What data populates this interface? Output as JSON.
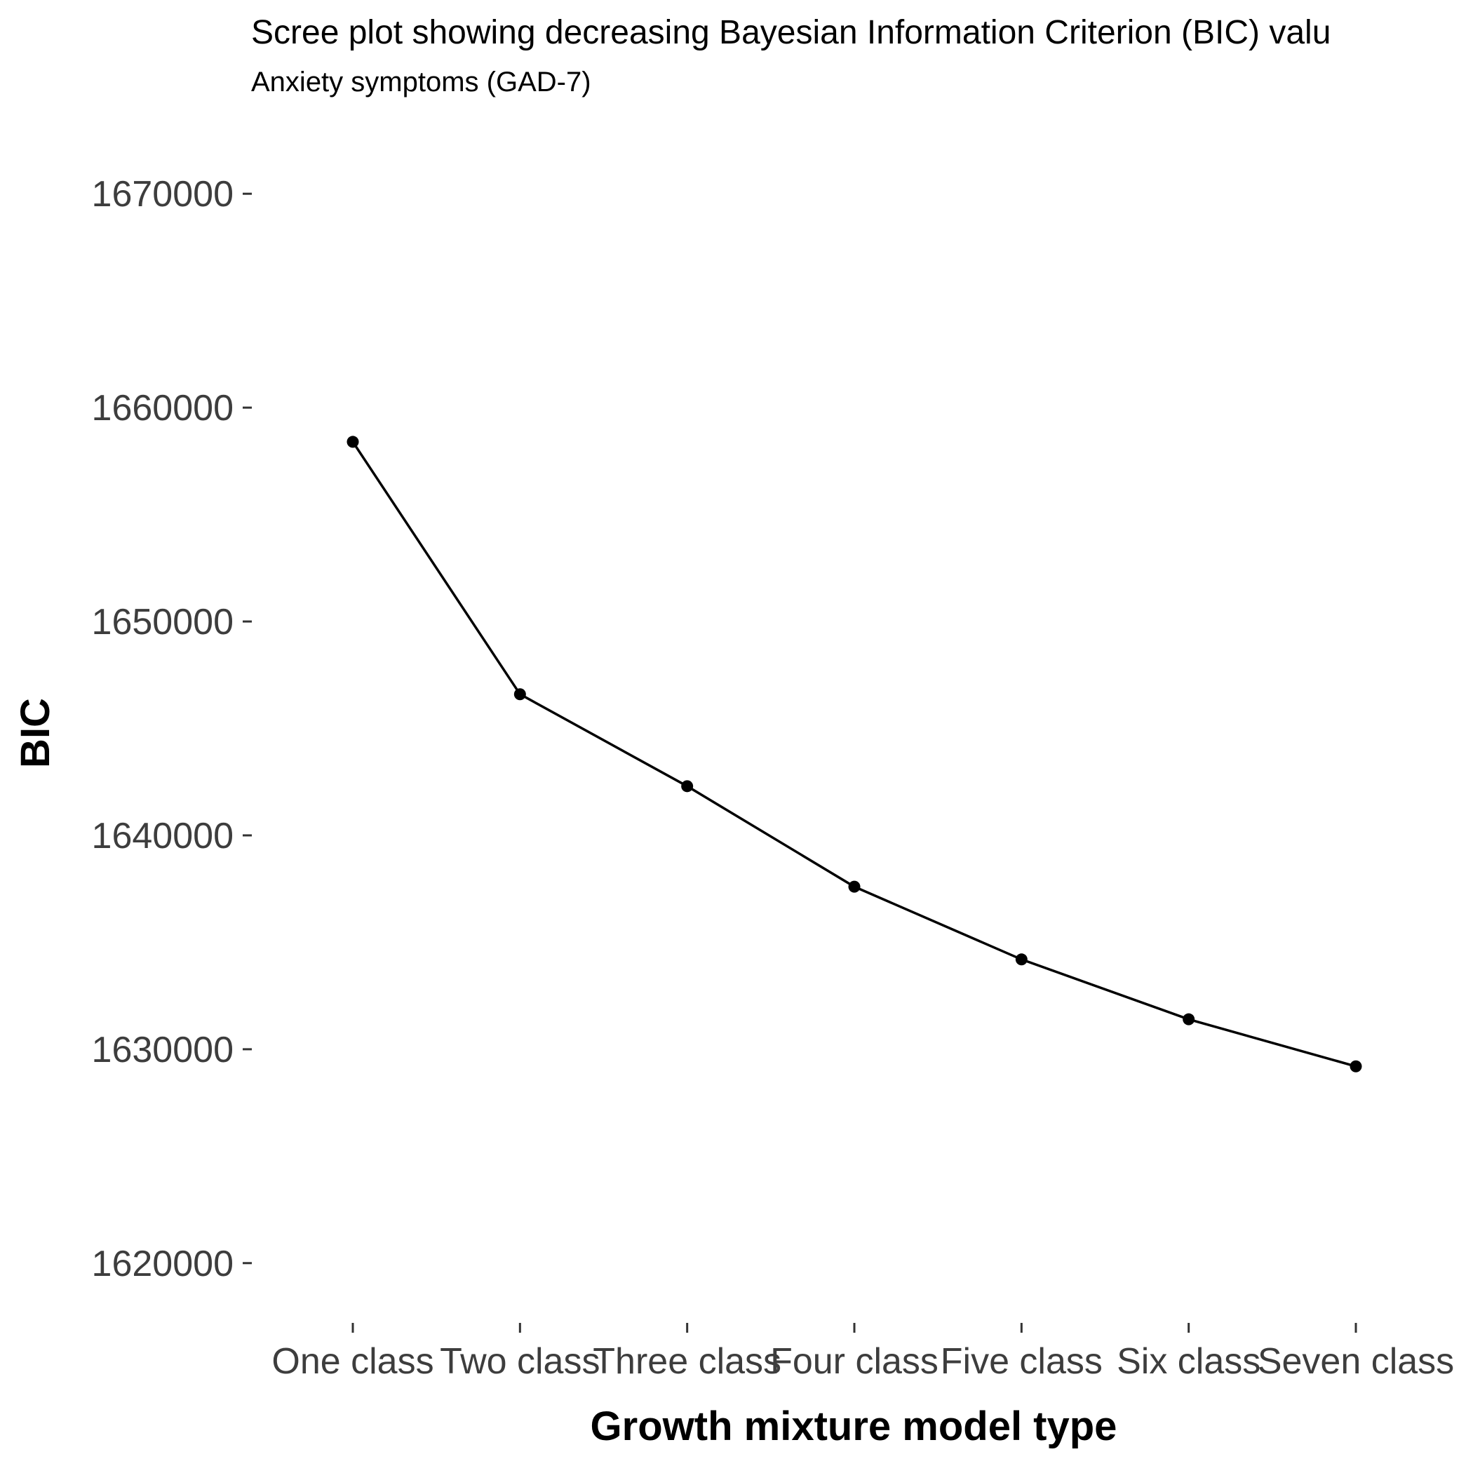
{
  "chart_data": {
    "type": "line",
    "title": "Scree plot showing decreasing Bayesian Information Criterion (BIC) valu",
    "subtitle": "Anxiety symptoms (GAD-7)",
    "xlabel": "Growth mixture model type",
    "ylabel": "BIC",
    "categories": [
      "One class",
      "Two class",
      "Three class",
      "Four class",
      "Five class",
      "Six class",
      "Seven class"
    ],
    "series": [
      {
        "values": [
          1658400,
          1646600,
          1642300,
          1637600,
          1634200,
          1631400,
          1629200
        ]
      }
    ],
    "yticks": [
      1620000,
      1630000,
      1640000,
      1650000,
      1660000,
      1670000
    ],
    "ytick_labels": [
      "1620000",
      "1630000",
      "1640000",
      "1650000",
      "1660000",
      "1670000"
    ],
    "ylim": [
      1617500,
      1672500
    ],
    "grid": false,
    "legend": "none"
  }
}
